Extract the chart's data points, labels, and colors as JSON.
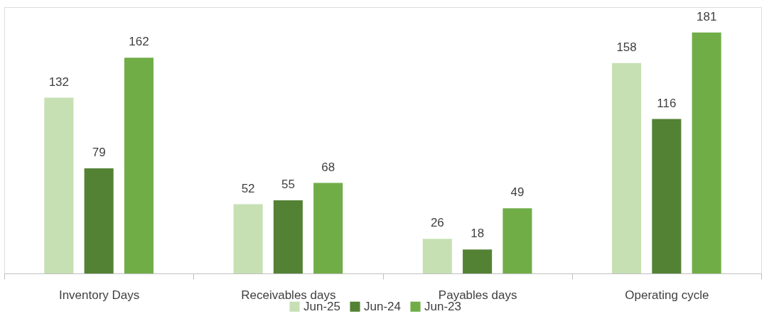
{
  "chart_data": {
    "type": "bar",
    "categories": [
      "Inventory Days",
      "Receivables days",
      "Payables days",
      "Operating cycle"
    ],
    "series": [
      {
        "name": "Jun-25",
        "color": "#c6e0b4",
        "values": [
          132,
          52,
          26,
          158
        ]
      },
      {
        "name": "Jun-24",
        "color": "#548235",
        "values": [
          79,
          55,
          18,
          116
        ]
      },
      {
        "name": "Jun-23",
        "color": "#70ad47",
        "values": [
          162,
          68,
          49,
          181
        ]
      }
    ],
    "ylim": [
      0,
      200
    ],
    "tick_labels": "x",
    "data_labels": true,
    "grid": false,
    "legend": "bottom"
  }
}
